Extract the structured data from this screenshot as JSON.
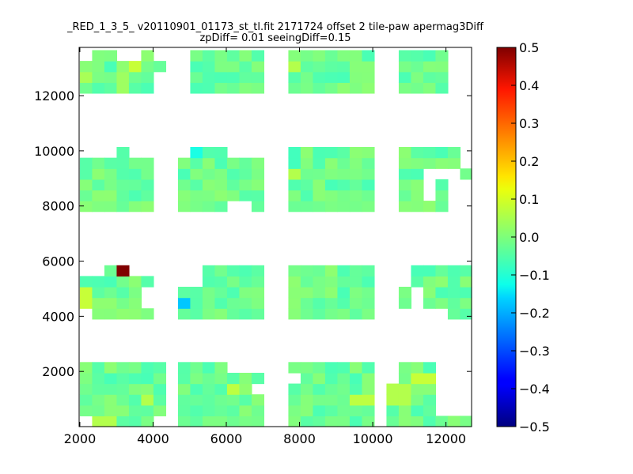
{
  "chart_data": {
    "type": "heatmap",
    "title_lines": [
      "_RED_1_3_5_ v20110901_01173_st_tl.fit 2171724 offset 2 tile-paw apermag3Diff",
      "zpDiff= 0.01 seeingDiff=0.15"
    ],
    "xlabel": "",
    "ylabel": "",
    "xlim": [
      1980,
      12700
    ],
    "ylim": [
      0,
      13750
    ],
    "x_ticks": [
      2000,
      4000,
      6000,
      8000,
      10000,
      12000
    ],
    "y_ticks": [
      2000,
      4000,
      6000,
      8000,
      10000,
      12000
    ],
    "grid": false,
    "colorbar": {
      "colormap": "jet",
      "vmin": -0.5,
      "vmax": 0.5,
      "ticks": [
        "0.5",
        "0.4",
        "0.3",
        "0.2",
        "0.1",
        "0.0",
        "−0.1",
        "−0.2",
        "−0.3",
        "−0.4",
        "−0.5"
      ]
    },
    "cell_size": [
      335,
      390
    ],
    "base_value": -0.02,
    "filled_regions": [
      {
        "x": [
          2000,
          4000
        ],
        "y": [
          12000,
          13600
        ]
      },
      {
        "x": [
          4000,
          4700
        ],
        "y": [
          12900,
          13400
        ]
      },
      {
        "x": [
          5000,
          7000
        ],
        "y": [
          12000,
          13600
        ]
      },
      {
        "x": [
          7700,
          10000
        ],
        "y": [
          12000,
          13600
        ]
      },
      {
        "x": [
          10700,
          12000
        ],
        "y": [
          12000,
          13600
        ]
      },
      {
        "x": [
          2000,
          4000
        ],
        "y": [
          7850,
          10000
        ]
      },
      {
        "x": [
          4700,
          7000
        ],
        "y": [
          7850,
          10000
        ]
      },
      {
        "x": [
          7700,
          10000
        ],
        "y": [
          7850,
          10000
        ]
      },
      {
        "x": [
          10700,
          12700
        ],
        "y": [
          7850,
          10000
        ]
      },
      {
        "x": [
          2000,
          4000
        ],
        "y": [
          3900,
          6000
        ]
      },
      {
        "x": [
          4700,
          7000
        ],
        "y": [
          3900,
          6000
        ]
      },
      {
        "x": [
          7700,
          10000
        ],
        "y": [
          3900,
          6000
        ]
      },
      {
        "x": [
          10700,
          12700
        ],
        "y": [
          3900,
          6000
        ]
      },
      {
        "x": [
          2000,
          4350
        ],
        "y": [
          0,
          2200
        ]
      },
      {
        "x": [
          4700,
          7000
        ],
        "y": [
          0,
          2200
        ]
      },
      {
        "x": [
          7700,
          10000
        ],
        "y": [
          0,
          2200
        ]
      },
      {
        "x": [
          10350,
          12700
        ],
        "y": [
          0,
          2200
        ]
      }
    ],
    "empty_regions": [
      {
        "x": [
          10350,
          10700
        ],
        "y": [
          1400,
          13750
        ]
      },
      {
        "x": [
          4350,
          4700
        ],
        "y": [
          0,
          13750
        ]
      },
      {
        "x": [
          7000,
          7700
        ],
        "y": [
          0,
          13750
        ]
      },
      {
        "x": [
          2000,
          2300
        ],
        "y": [
          13200,
          13600
        ]
      },
      {
        "x": [
          3100,
          3600
        ],
        "y": [
          13200,
          13600
        ]
      },
      {
        "x": [
          2000,
          3000
        ],
        "y": [
          9650,
          10000
        ]
      },
      {
        "x": [
          3400,
          4000
        ],
        "y": [
          9650,
          10000
        ]
      },
      {
        "x": [
          4700,
          5000
        ],
        "y": [
          9650,
          10000
        ]
      },
      {
        "x": [
          6000,
          7000
        ],
        "y": [
          9650,
          10000
        ]
      },
      {
        "x": [
          10700,
          12000
        ],
        "y": [
          3900,
          4300
        ]
      },
      {
        "x": [
          3700,
          4000
        ],
        "y": [
          4300,
          5200
        ]
      },
      {
        "x": [
          2000,
          2300
        ],
        "y": [
          3900,
          4300
        ]
      },
      {
        "x": [
          4700,
          5300
        ],
        "y": [
          5200,
          6000
        ]
      },
      {
        "x": [
          2000,
          2700
        ],
        "y": [
          5600,
          6000
        ]
      },
      {
        "x": [
          3400,
          4000
        ],
        "y": [
          5600,
          6000
        ]
      },
      {
        "x": [
          10700,
          11000
        ],
        "y": [
          5200,
          6000
        ]
      },
      {
        "x": [
          11200,
          11350
        ],
        "y": [
          4300,
          5200
        ]
      },
      {
        "x": [
          6000,
          7000
        ],
        "y": [
          1800,
          2200
        ]
      },
      {
        "x": [
          11700,
          12700
        ],
        "y": [
          1800,
          2200
        ]
      },
      {
        "x": [
          11600,
          12700
        ],
        "y": [
          400,
          1800
        ]
      },
      {
        "x": [
          2000,
          2300
        ],
        "y": [
          0,
          400
        ]
      },
      {
        "x": [
          4000,
          4350
        ],
        "y": [
          0,
          400
        ]
      },
      {
        "x": [
          6700,
          7000
        ],
        "y": [
          1100,
          1400
        ]
      },
      {
        "x": [
          7700,
          8000
        ],
        "y": [
          1400,
          1800
        ]
      },
      {
        "x": [
          6000,
          6700
        ],
        "y": [
          7850,
          8250
        ]
      },
      {
        "x": [
          11400,
          11800
        ],
        "y": [
          8250,
          9400
        ]
      },
      {
        "x": [
          11800,
          12400
        ],
        "y": [
          9000,
          9400
        ]
      },
      {
        "x": [
          12400,
          12700
        ],
        "y": [
          9400,
          10000
        ]
      },
      {
        "x": [
          12000,
          12700
        ],
        "y": [
          7850,
          9000
        ]
      }
    ],
    "highlight_cells": [
      {
        "x": 3100,
        "y": 5800,
        "value": 0.5
      },
      {
        "x": 4800,
        "y": 4400,
        "value": -0.18
      },
      {
        "x": 5150,
        "y": 10100,
        "value": -0.1
      },
      {
        "x": 4750,
        "y": 13100,
        "value": 0.09
      },
      {
        "x": 10500,
        "y": 5400,
        "value": 0.08
      },
      {
        "x": 3500,
        "y": 13000,
        "value": 0.07
      },
      {
        "x": 7800,
        "y": 13150,
        "value": 0.05
      },
      {
        "x": 11400,
        "y": 1700,
        "value": 0.07
      },
      {
        "x": 6100,
        "y": 1250,
        "value": 0.06
      },
      {
        "x": 2150,
        "y": 4700,
        "value": 0.07
      },
      {
        "x": 10800,
        "y": 4200,
        "value": -0.07
      },
      {
        "x": 7800,
        "y": 9100,
        "value": 0.05
      },
      {
        "x": 7850,
        "y": 9750,
        "value": -0.06
      },
      {
        "x": 2650,
        "y": 250,
        "value": 0.05
      },
      {
        "x": 3750,
        "y": 1000,
        "value": 0.05
      },
      {
        "x": 10700,
        "y": 1200,
        "value": 0.05
      },
      {
        "x": 3200,
        "y": 12500,
        "value": 0.03
      },
      {
        "x": 2200,
        "y": 12700,
        "value": 0.04
      },
      {
        "x": 3800,
        "y": 2000,
        "value": -0.05
      },
      {
        "x": 9700,
        "y": 900,
        "value": 0.06
      }
    ]
  }
}
